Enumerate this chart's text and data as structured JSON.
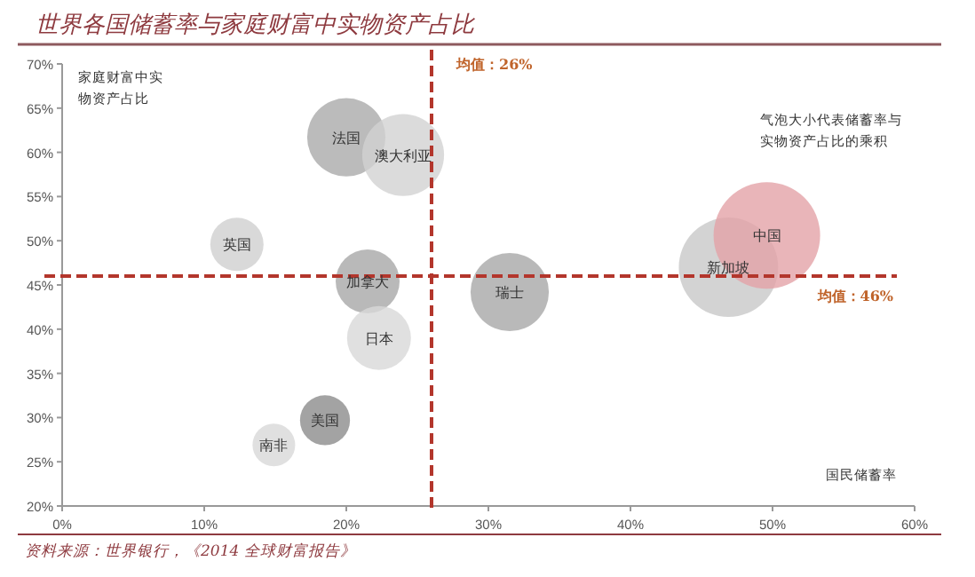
{
  "chart_data": {
    "type": "bubble",
    "title": "世界各国储蓄率与家庭财富中实物资产占比",
    "xlabel": "国民储蓄率",
    "ylabel": "家庭财富中实物资产占比",
    "xlim": [
      0,
      60
    ],
    "xticks": [
      {
        "value": 0,
        "label": "0%"
      },
      {
        "value": 10,
        "label": "10%"
      },
      {
        "value": 20,
        "label": "20%"
      },
      {
        "value": 30,
        "label": "30%"
      },
      {
        "value": 40,
        "label": "40%"
      },
      {
        "value": 50,
        "label": "50%"
      },
      {
        "value": 60,
        "label": "60%"
      }
    ],
    "ylim": [
      20,
      70
    ],
    "yticks": [
      {
        "value": 20,
        "label": "20%"
      },
      {
        "value": 25,
        "label": "25%"
      },
      {
        "value": 30,
        "label": "30%"
      },
      {
        "value": 35,
        "label": "35%"
      },
      {
        "value": 40,
        "label": "40%"
      },
      {
        "value": 45,
        "label": "45%"
      },
      {
        "value": 50,
        "label": "50%"
      },
      {
        "value": 55,
        "label": "55%"
      },
      {
        "value": 60,
        "label": "60%"
      },
      {
        "value": 65,
        "label": "65%"
      },
      {
        "value": 70,
        "label": "70%"
      }
    ],
    "grid": false,
    "series": [
      {
        "x": [
          20.0,
          24.0,
          12.3,
          21.5,
          22.3,
          18.5,
          14.9,
          31.5,
          46.9,
          49.6
        ],
        "values": [
          61.7,
          59.7,
          49.6,
          45.4,
          39.0,
          29.7,
          26.9,
          44.2,
          47.0,
          50.6
        ],
        "sizes": [
          0.54,
          0.59,
          0.25,
          0.36,
          0.36,
          0.22,
          0.16,
          0.54,
          0.87,
          1
        ],
        "colors": [
          "#aaaaaa",
          "#d2d2d2",
          "#d0d0d0",
          "#a8a8a8",
          "#d8d8d8",
          "#8c8c8c",
          "#d8d8d8",
          "#a8a8a8",
          "#c8c8c8",
          "#e3a3a7"
        ]
      }
    ],
    "ref_lines": [
      {
        "axis": "x",
        "value": 26,
        "label": "均值：26%",
        "color": "#b3362c",
        "line_style": "dashed"
      },
      {
        "axis": "y",
        "value": 46,
        "label": "均值：46%",
        "color": "#b3362c",
        "line_style": "dashed"
      }
    ],
    "annotations": [
      {
        "text": "法国",
        "x": 20.0,
        "y": 61.7
      },
      {
        "text": "澳大利亚",
        "x": 24.0,
        "y": 59.7
      },
      {
        "text": "英国",
        "x": 12.3,
        "y": 49.6
      },
      {
        "text": "加拿大",
        "x": 21.5,
        "y": 45.4
      },
      {
        "text": "日本",
        "x": 22.3,
        "y": 39.0
      },
      {
        "text": "美国",
        "x": 18.5,
        "y": 29.7
      },
      {
        "text": "南非",
        "x": 14.9,
        "y": 26.9
      },
      {
        "text": "瑞士",
        "x": 31.5,
        "y": 44.2
      },
      {
        "text": "新加坡",
        "x": 46.9,
        "y": 47.0
      },
      {
        "text": "中国",
        "x": 49.6,
        "y": 50.6
      },
      "气泡大小代表储蓄率与实物资产占比的乘积",
      "资料来源：世界银行，《2014 全球财富报告》"
    ]
  }
}
